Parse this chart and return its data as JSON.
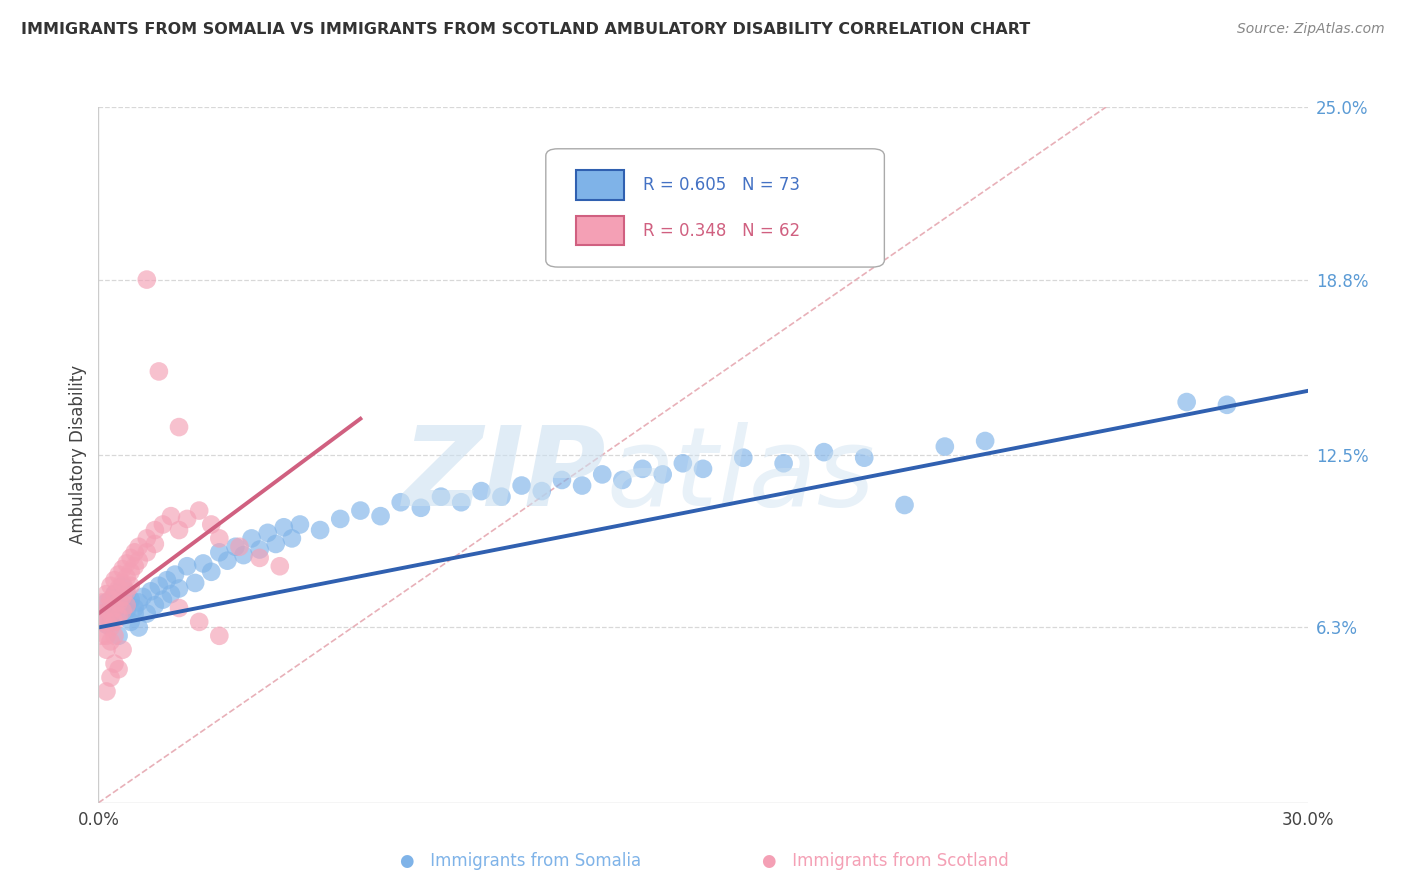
{
  "title": "IMMIGRANTS FROM SOMALIA VS IMMIGRANTS FROM SCOTLAND AMBULATORY DISABILITY CORRELATION CHART",
  "source": "Source: ZipAtlas.com",
  "ylabel": "Ambulatory Disability",
  "xlim": [
    0.0,
    0.3
  ],
  "ylim": [
    0.0,
    0.25
  ],
  "yticks": [
    0.063,
    0.125,
    0.188,
    0.25
  ],
  "ytick_labels": [
    "6.3%",
    "12.5%",
    "18.8%",
    "25.0%"
  ],
  "color_somalia": "#7fb3e8",
  "color_scotland": "#f4a0b5",
  "line_color_somalia": "#3060b0",
  "line_color_scotland": "#d06080",
  "somalia_line": [
    [
      0.0,
      0.063
    ],
    [
      0.3,
      0.148
    ]
  ],
  "scotland_line": [
    [
      0.0,
      0.068
    ],
    [
      0.065,
      0.138
    ]
  ],
  "ref_line": [
    [
      0.0,
      0.0
    ],
    [
      0.25,
      0.25
    ]
  ],
  "ref_line_color": "#e8b0b8",
  "gridline_color": "#d8d8d8",
  "background_color": "#ffffff",
  "somalia_points": [
    [
      0.001,
      0.068
    ],
    [
      0.002,
      0.072
    ],
    [
      0.002,
      0.064
    ],
    [
      0.003,
      0.07
    ],
    [
      0.003,
      0.065
    ],
    [
      0.004,
      0.075
    ],
    [
      0.004,
      0.068
    ],
    [
      0.005,
      0.073
    ],
    [
      0.005,
      0.06
    ],
    [
      0.006,
      0.071
    ],
    [
      0.006,
      0.078
    ],
    [
      0.007,
      0.069
    ],
    [
      0.007,
      0.075
    ],
    [
      0.008,
      0.073
    ],
    [
      0.008,
      0.065
    ],
    [
      0.009,
      0.07
    ],
    [
      0.009,
      0.068
    ],
    [
      0.01,
      0.072
    ],
    [
      0.01,
      0.063
    ],
    [
      0.011,
      0.074
    ],
    [
      0.012,
      0.068
    ],
    [
      0.013,
      0.076
    ],
    [
      0.014,
      0.071
    ],
    [
      0.015,
      0.078
    ],
    [
      0.016,
      0.073
    ],
    [
      0.017,
      0.08
    ],
    [
      0.018,
      0.075
    ],
    [
      0.019,
      0.082
    ],
    [
      0.02,
      0.077
    ],
    [
      0.022,
      0.085
    ],
    [
      0.024,
      0.079
    ],
    [
      0.026,
      0.086
    ],
    [
      0.028,
      0.083
    ],
    [
      0.03,
      0.09
    ],
    [
      0.032,
      0.087
    ],
    [
      0.034,
      0.092
    ],
    [
      0.036,
      0.089
    ],
    [
      0.038,
      0.095
    ],
    [
      0.04,
      0.091
    ],
    [
      0.042,
      0.097
    ],
    [
      0.044,
      0.093
    ],
    [
      0.046,
      0.099
    ],
    [
      0.048,
      0.095
    ],
    [
      0.05,
      0.1
    ],
    [
      0.055,
      0.098
    ],
    [
      0.06,
      0.102
    ],
    [
      0.065,
      0.105
    ],
    [
      0.07,
      0.103
    ],
    [
      0.075,
      0.108
    ],
    [
      0.08,
      0.106
    ],
    [
      0.085,
      0.11
    ],
    [
      0.09,
      0.108
    ],
    [
      0.095,
      0.112
    ],
    [
      0.1,
      0.11
    ],
    [
      0.105,
      0.114
    ],
    [
      0.11,
      0.112
    ],
    [
      0.115,
      0.116
    ],
    [
      0.12,
      0.114
    ],
    [
      0.125,
      0.118
    ],
    [
      0.13,
      0.116
    ],
    [
      0.135,
      0.12
    ],
    [
      0.14,
      0.118
    ],
    [
      0.145,
      0.122
    ],
    [
      0.15,
      0.12
    ],
    [
      0.16,
      0.124
    ],
    [
      0.17,
      0.122
    ],
    [
      0.18,
      0.126
    ],
    [
      0.19,
      0.124
    ],
    [
      0.2,
      0.107
    ],
    [
      0.21,
      0.128
    ],
    [
      0.22,
      0.13
    ],
    [
      0.27,
      0.144
    ],
    [
      0.28,
      0.143
    ]
  ],
  "scotland_points": [
    [
      0.001,
      0.072
    ],
    [
      0.001,
      0.068
    ],
    [
      0.001,
      0.065
    ],
    [
      0.001,
      0.06
    ],
    [
      0.002,
      0.075
    ],
    [
      0.002,
      0.07
    ],
    [
      0.002,
      0.065
    ],
    [
      0.002,
      0.06
    ],
    [
      0.002,
      0.055
    ],
    [
      0.003,
      0.078
    ],
    [
      0.003,
      0.073
    ],
    [
      0.003,
      0.068
    ],
    [
      0.003,
      0.063
    ],
    [
      0.003,
      0.058
    ],
    [
      0.004,
      0.08
    ],
    [
      0.004,
      0.075
    ],
    [
      0.004,
      0.07
    ],
    [
      0.004,
      0.065
    ],
    [
      0.004,
      0.06
    ],
    [
      0.005,
      0.082
    ],
    [
      0.005,
      0.077
    ],
    [
      0.005,
      0.072
    ],
    [
      0.005,
      0.067
    ],
    [
      0.006,
      0.084
    ],
    [
      0.006,
      0.079
    ],
    [
      0.006,
      0.074
    ],
    [
      0.006,
      0.069
    ],
    [
      0.007,
      0.086
    ],
    [
      0.007,
      0.081
    ],
    [
      0.007,
      0.076
    ],
    [
      0.007,
      0.071
    ],
    [
      0.008,
      0.088
    ],
    [
      0.008,
      0.083
    ],
    [
      0.008,
      0.078
    ],
    [
      0.009,
      0.09
    ],
    [
      0.009,
      0.085
    ],
    [
      0.01,
      0.092
    ],
    [
      0.01,
      0.087
    ],
    [
      0.012,
      0.095
    ],
    [
      0.012,
      0.09
    ],
    [
      0.014,
      0.098
    ],
    [
      0.014,
      0.093
    ],
    [
      0.016,
      0.1
    ],
    [
      0.018,
      0.103
    ],
    [
      0.02,
      0.098
    ],
    [
      0.022,
      0.102
    ],
    [
      0.025,
      0.105
    ],
    [
      0.028,
      0.1
    ],
    [
      0.03,
      0.095
    ],
    [
      0.035,
      0.092
    ],
    [
      0.04,
      0.088
    ],
    [
      0.045,
      0.085
    ],
    [
      0.012,
      0.188
    ],
    [
      0.015,
      0.155
    ],
    [
      0.02,
      0.135
    ],
    [
      0.002,
      0.04
    ],
    [
      0.003,
      0.045
    ],
    [
      0.004,
      0.05
    ],
    [
      0.005,
      0.048
    ],
    [
      0.006,
      0.055
    ],
    [
      0.02,
      0.07
    ],
    [
      0.025,
      0.065
    ],
    [
      0.03,
      0.06
    ]
  ]
}
